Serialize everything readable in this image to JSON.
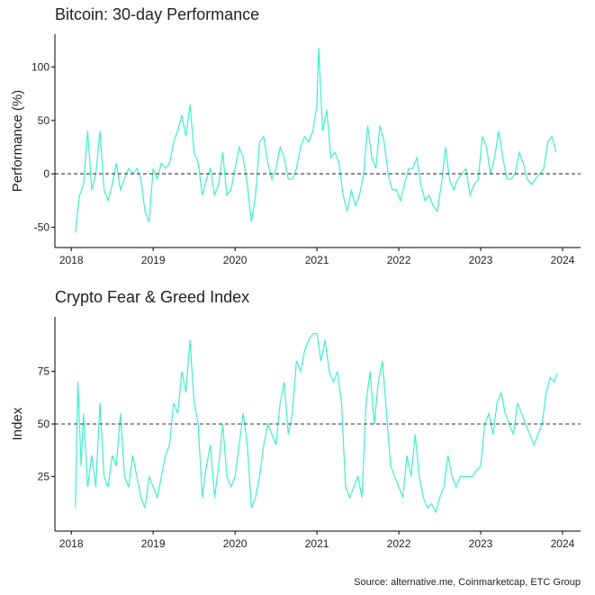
{
  "chart_data": [
    {
      "type": "line",
      "title": "Bitcoin: 30-day Performance",
      "y_label": "Performance (%)",
      "color": "#3ff0c8",
      "xlim": [
        2017.8,
        2024.22
      ],
      "xticks": [
        2018,
        2019,
        2020,
        2021,
        2022,
        2023,
        2024
      ],
      "ylim": [
        -69,
        130.7
      ],
      "yticks": [
        -50,
        0,
        50,
        100
      ],
      "hline": 0,
      "x": [
        2018.05,
        2018.1,
        2018.15,
        2018.2,
        2018.25,
        2018.3,
        2018.35,
        2018.4,
        2018.45,
        2018.5,
        2018.55,
        2018.6,
        2018.65,
        2018.7,
        2018.75,
        2018.8,
        2018.85,
        2018.9,
        2018.95,
        2019.0,
        2019.05,
        2019.1,
        2019.15,
        2019.2,
        2019.25,
        2019.3,
        2019.35,
        2019.4,
        2019.45,
        2019.5,
        2019.55,
        2019.6,
        2019.65,
        2019.7,
        2019.75,
        2019.8,
        2019.85,
        2019.9,
        2019.95,
        2020.0,
        2020.05,
        2020.1,
        2020.15,
        2020.2,
        2020.25,
        2020.3,
        2020.35,
        2020.4,
        2020.45,
        2020.5,
        2020.55,
        2020.6,
        2020.65,
        2020.7,
        2020.75,
        2020.8,
        2020.85,
        2020.9,
        2020.95,
        2021.0,
        2021.02,
        2021.07,
        2021.12,
        2021.17,
        2021.22,
        2021.27,
        2021.32,
        2021.37,
        2021.42,
        2021.47,
        2021.52,
        2021.57,
        2021.62,
        2021.67,
        2021.72,
        2021.77,
        2021.82,
        2021.87,
        2021.92,
        2021.97,
        2022.02,
        2022.07,
        2022.12,
        2022.17,
        2022.22,
        2022.27,
        2022.32,
        2022.37,
        2022.42,
        2022.47,
        2022.52,
        2022.57,
        2022.62,
        2022.67,
        2022.72,
        2022.77,
        2022.82,
        2022.87,
        2022.92,
        2022.97,
        2023.02,
        2023.07,
        2023.12,
        2023.17,
        2023.22,
        2023.27,
        2023.32,
        2023.37,
        2023.42,
        2023.47,
        2023.52,
        2023.57,
        2023.62,
        2023.67,
        2023.72,
        2023.77,
        2023.82,
        2023.87,
        2023.92
      ],
      "values": [
        -55,
        -20,
        -10,
        40,
        -15,
        0,
        40,
        -15,
        -25,
        -10,
        10,
        -15,
        -5,
        5,
        0,
        5,
        -5,
        -35,
        -45,
        5,
        -5,
        10,
        5,
        10,
        30,
        40,
        55,
        35,
        65,
        20,
        10,
        -20,
        -5,
        5,
        -20,
        -10,
        20,
        -20,
        -15,
        5,
        25,
        15,
        -10,
        -45,
        -20,
        30,
        35,
        10,
        -5,
        5,
        25,
        15,
        -5,
        -5,
        5,
        25,
        35,
        30,
        40,
        65,
        118,
        40,
        60,
        15,
        20,
        10,
        -20,
        -35,
        -15,
        -30,
        -20,
        0,
        45,
        15,
        5,
        45,
        30,
        0,
        -15,
        -15,
        -25,
        -10,
        5,
        5,
        15,
        -10,
        -25,
        -20,
        -30,
        -35,
        -10,
        25,
        -5,
        -15,
        -5,
        0,
        5,
        -20,
        -10,
        -5,
        35,
        25,
        0,
        15,
        40,
        15,
        -5,
        -5,
        0,
        20,
        10,
        -5,
        -10,
        -5,
        0,
        5,
        30,
        35,
        20
      ]
    },
    {
      "type": "line",
      "title": "Crypto Fear & Greed Index",
      "y_label": "Index",
      "color": "#3ff0c8",
      "xlim": [
        2017.8,
        2024.22
      ],
      "xticks": [
        2018,
        2019,
        2020,
        2021,
        2022,
        2023,
        2024
      ],
      "ylim": [
        -1,
        101
      ],
      "yticks": [
        25,
        50,
        75
      ],
      "hline": 50,
      "x": [
        2018.05,
        2018.08,
        2018.12,
        2018.15,
        2018.2,
        2018.25,
        2018.3,
        2018.35,
        2018.4,
        2018.45,
        2018.5,
        2018.55,
        2018.6,
        2018.65,
        2018.7,
        2018.75,
        2018.8,
        2018.85,
        2018.9,
        2018.95,
        2019.0,
        2019.05,
        2019.1,
        2019.15,
        2019.2,
        2019.25,
        2019.3,
        2019.35,
        2019.4,
        2019.45,
        2019.5,
        2019.55,
        2019.6,
        2019.65,
        2019.7,
        2019.75,
        2019.8,
        2019.85,
        2019.9,
        2019.95,
        2020.0,
        2020.05,
        2020.1,
        2020.15,
        2020.2,
        2020.25,
        2020.3,
        2020.35,
        2020.4,
        2020.45,
        2020.5,
        2020.55,
        2020.6,
        2020.65,
        2020.7,
        2020.75,
        2020.8,
        2020.85,
        2020.9,
        2020.95,
        2021.0,
        2021.05,
        2021.1,
        2021.15,
        2021.2,
        2021.25,
        2021.3,
        2021.35,
        2021.4,
        2021.45,
        2021.5,
        2021.55,
        2021.6,
        2021.65,
        2021.7,
        2021.75,
        2021.8,
        2021.85,
        2021.9,
        2021.95,
        2022.0,
        2022.05,
        2022.1,
        2022.15,
        2022.2,
        2022.25,
        2022.3,
        2022.35,
        2022.4,
        2022.45,
        2022.5,
        2022.55,
        2022.6,
        2022.65,
        2022.7,
        2022.75,
        2022.8,
        2022.85,
        2022.9,
        2022.95,
        2023.0,
        2023.05,
        2023.1,
        2023.15,
        2023.2,
        2023.25,
        2023.3,
        2023.35,
        2023.4,
        2023.45,
        2023.5,
        2023.55,
        2023.6,
        2023.65,
        2023.7,
        2023.75,
        2023.8,
        2023.85,
        2023.9,
        2023.93
      ],
      "values": [
        10,
        70,
        30,
        55,
        20,
        35,
        20,
        60,
        25,
        20,
        35,
        30,
        55,
        25,
        20,
        35,
        25,
        15,
        10,
        25,
        20,
        15,
        25,
        35,
        40,
        60,
        55,
        75,
        65,
        90,
        60,
        50,
        15,
        30,
        40,
        15,
        30,
        50,
        25,
        20,
        25,
        40,
        55,
        40,
        10,
        15,
        25,
        40,
        50,
        45,
        40,
        60,
        70,
        45,
        55,
        80,
        75,
        85,
        90,
        93,
        93,
        80,
        90,
        75,
        70,
        75,
        60,
        20,
        15,
        20,
        25,
        15,
        60,
        75,
        50,
        70,
        80,
        55,
        30,
        25,
        20,
        15,
        35,
        25,
        45,
        25,
        15,
        10,
        12,
        8,
        15,
        20,
        35,
        25,
        20,
        25,
        25,
        25,
        25,
        28,
        30,
        50,
        55,
        45,
        60,
        65,
        55,
        50,
        45,
        60,
        55,
        50,
        45,
        40,
        45,
        50,
        65,
        72,
        70,
        74
      ]
    }
  ],
  "source": "Source: alternative.me, Coinmarketcap, ETC Group"
}
